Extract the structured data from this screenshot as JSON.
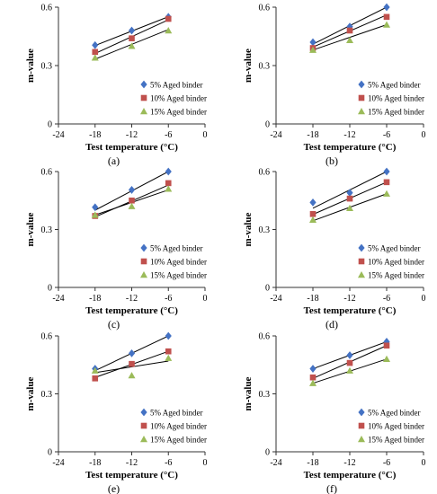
{
  "chart_data": [
    {
      "panel_label": "(a)",
      "type": "scatter",
      "xlabel": "Test temperature (°C)",
      "ylabel": "m-value",
      "xlim": [
        -24,
        0
      ],
      "ylim": [
        0,
        0.6
      ],
      "xticks": [
        "-24",
        "-18",
        "-12",
        "-6",
        "0"
      ],
      "yticks": [
        "0",
        "0.3",
        "0.6"
      ],
      "grid": false,
      "legend_position": "bottom-right",
      "x": [
        -18,
        -12,
        -6
      ],
      "series": [
        {
          "name": "5% Aged binder",
          "marker": "diamond",
          "color": "#4472C4",
          "values": [
            0.405,
            0.48,
            0.55
          ],
          "fit": [
            0.403,
            0.551
          ]
        },
        {
          "name": "10% Aged binder",
          "marker": "square",
          "color": "#C0504D",
          "values": [
            0.37,
            0.44,
            0.54
          ],
          "fit": [
            0.362,
            0.535
          ]
        },
        {
          "name": "15% Aged binder",
          "marker": "triangle",
          "color": "#9BBB59",
          "values": [
            0.34,
            0.4,
            0.48
          ],
          "fit": [
            0.333,
            0.485
          ]
        }
      ]
    },
    {
      "panel_label": "(b)",
      "type": "scatter",
      "xlabel": "Test temperature (°C)",
      "ylabel": "m-value",
      "xlim": [
        -24,
        0
      ],
      "ylim": [
        0,
        0.6
      ],
      "xticks": [
        "-24",
        "-18",
        "-12",
        "-6",
        "0"
      ],
      "yticks": [
        "0",
        "0.3",
        "0.6"
      ],
      "grid": false,
      "legend_position": "bottom-right",
      "x": [
        -18,
        -12,
        -6
      ],
      "series": [
        {
          "name": "5% Aged binder",
          "marker": "diamond",
          "color": "#4472C4",
          "values": [
            0.42,
            0.5,
            0.6
          ],
          "fit": [
            0.41,
            0.6
          ]
        },
        {
          "name": "10% Aged binder",
          "marker": "square",
          "color": "#C0504D",
          "values": [
            0.39,
            0.48,
            0.55
          ],
          "fit": [
            0.395,
            0.56
          ]
        },
        {
          "name": "15% Aged binder",
          "marker": "triangle",
          "color": "#9BBB59",
          "values": [
            0.38,
            0.43,
            0.51
          ],
          "fit": [
            0.38,
            0.51
          ]
        }
      ]
    },
    {
      "panel_label": "(c)",
      "type": "scatter",
      "xlabel": "Test temperature (°C)",
      "ylabel": "m-value",
      "xlim": [
        -24,
        0
      ],
      "ylim": [
        0,
        0.6
      ],
      "xticks": [
        "-24",
        "-18",
        "-12",
        "-6",
        "0"
      ],
      "yticks": [
        "0",
        "0.3",
        "0.6"
      ],
      "grid": false,
      "legend_position": "bottom-right",
      "x": [
        -18,
        -12,
        -6
      ],
      "series": [
        {
          "name": "5% Aged binder",
          "marker": "diamond",
          "color": "#4472C4",
          "values": [
            0.415,
            0.505,
            0.6
          ],
          "fit": [
            0.4,
            0.6
          ]
        },
        {
          "name": "10% Aged binder",
          "marker": "square",
          "color": "#C0504D",
          "values": [
            0.37,
            0.45,
            0.54
          ],
          "fit": [
            0.365,
            0.53
          ]
        },
        {
          "name": "15% Aged binder",
          "marker": "triangle",
          "color": "#9BBB59",
          "values": [
            0.375,
            0.42,
            0.51
          ],
          "fit": [
            0.375,
            0.505
          ]
        }
      ]
    },
    {
      "panel_label": "(d)",
      "type": "scatter",
      "xlabel": "Test temperature (°C)",
      "ylabel": "m-value",
      "xlim": [
        -24,
        0
      ],
      "ylim": [
        0,
        0.6
      ],
      "xticks": [
        "-24",
        "-18",
        "-12",
        "-6",
        "0"
      ],
      "yticks": [
        "0",
        "0.3",
        "0.6"
      ],
      "grid": false,
      "legend_position": "bottom-right",
      "x": [
        -18,
        -12,
        -6
      ],
      "series": [
        {
          "name": "5% Aged binder",
          "marker": "diamond",
          "color": "#4472C4",
          "values": [
            0.44,
            0.49,
            0.6
          ],
          "fit": [
            0.41,
            0.6
          ]
        },
        {
          "name": "10% Aged binder",
          "marker": "square",
          "color": "#C0504D",
          "values": [
            0.38,
            0.46,
            0.545
          ],
          "fit": [
            0.378,
            0.545
          ]
        },
        {
          "name": "15% Aged binder",
          "marker": "triangle",
          "color": "#9BBB59",
          "values": [
            0.35,
            0.41,
            0.485
          ],
          "fit": [
            0.345,
            0.485
          ]
        }
      ]
    },
    {
      "panel_label": "(e)",
      "type": "scatter",
      "xlabel": "Test temperature (°C)",
      "ylabel": "m-value",
      "xlim": [
        -24,
        0
      ],
      "ylim": [
        0,
        0.6
      ],
      "xticks": [
        "-24",
        "-18",
        "-12",
        "-6",
        "0"
      ],
      "yticks": [
        "0",
        "0.3",
        "0.6"
      ],
      "grid": false,
      "legend_position": "bottom-right",
      "x": [
        -18,
        -12,
        -6
      ],
      "series": [
        {
          "name": "5% Aged binder",
          "marker": "diamond",
          "color": "#4472C4",
          "values": [
            0.43,
            0.51,
            0.6
          ],
          "fit": [
            0.42,
            0.6
          ]
        },
        {
          "name": "10% Aged binder",
          "marker": "square",
          "color": "#C0504D",
          "values": [
            0.38,
            0.455,
            0.52
          ],
          "fit": [
            0.385,
            0.52
          ]
        },
        {
          "name": "15% Aged binder",
          "marker": "triangle",
          "color": "#9BBB59",
          "values": [
            0.42,
            0.395,
            0.485
          ],
          "fit": [
            0.41,
            0.47
          ]
        }
      ]
    },
    {
      "panel_label": "(f)",
      "type": "scatter",
      "xlabel": "Test temperature (°C)",
      "ylabel": "m-value",
      "xlim": [
        -24,
        0
      ],
      "ylim": [
        0,
        0.6
      ],
      "xticks": [
        "-24",
        "-18",
        "-12",
        "-6",
        "0"
      ],
      "yticks": [
        "0",
        "0.3",
        "0.6"
      ],
      "grid": false,
      "legend_position": "bottom-right",
      "x": [
        -18,
        -12,
        -6
      ],
      "series": [
        {
          "name": "5% Aged binder",
          "marker": "diamond",
          "color": "#4472C4",
          "values": [
            0.43,
            0.5,
            0.57
          ],
          "fit": [
            0.43,
            0.57
          ]
        },
        {
          "name": "10% Aged binder",
          "marker": "square",
          "color": "#C0504D",
          "values": [
            0.385,
            0.46,
            0.55
          ],
          "fit": [
            0.38,
            0.55
          ]
        },
        {
          "name": "15% Aged binder",
          "marker": "triangle",
          "color": "#9BBB59",
          "values": [
            0.355,
            0.42,
            0.48
          ],
          "fit": [
            0.355,
            0.48
          ]
        }
      ]
    }
  ]
}
